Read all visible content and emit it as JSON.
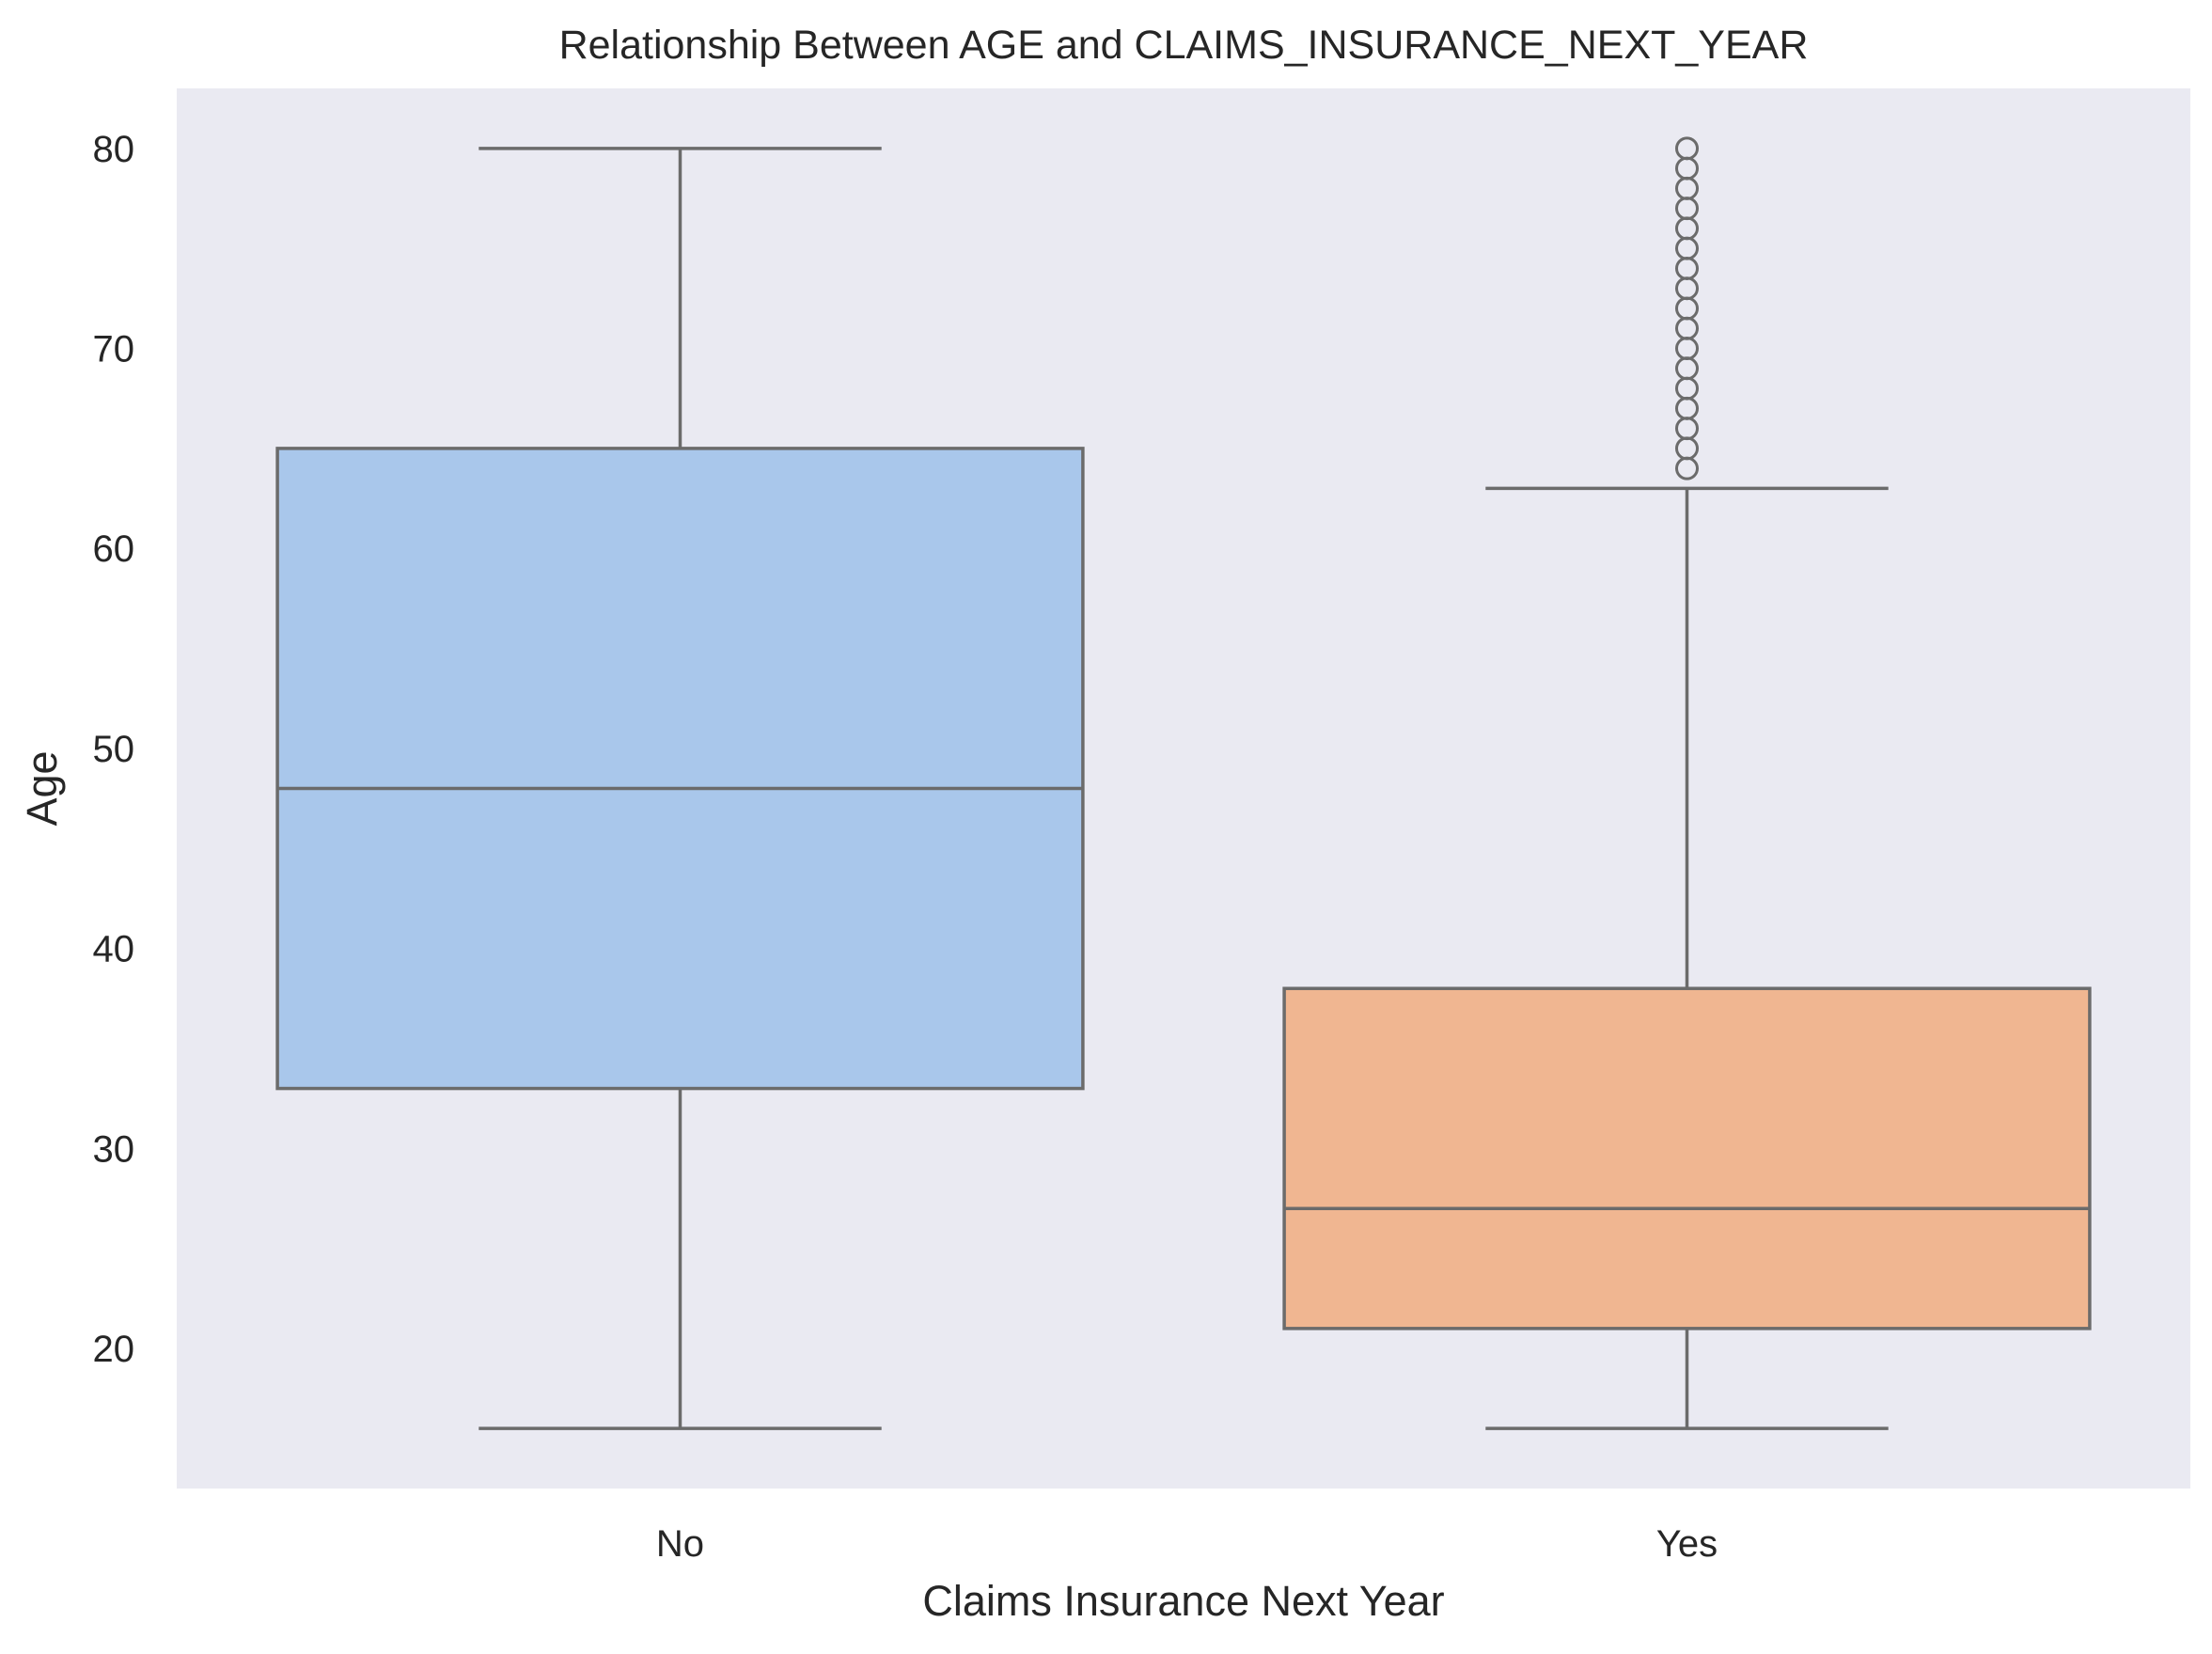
{
  "chart_data": {
    "type": "box",
    "title": "Relationship Between AGE and CLAIMS_INSURANCE_NEXT_YEAR",
    "xlabel": "Claims Insurance Next Year",
    "ylabel": "Age",
    "categories": [
      "No",
      "Yes"
    ],
    "ylim": [
      13,
      83
    ],
    "yticks": [
      20,
      30,
      40,
      50,
      60,
      70,
      80
    ],
    "grid": false,
    "boxes": [
      {
        "category": "No",
        "whisker_low": 16,
        "q1": 33,
        "median": 48,
        "q3": 65,
        "whisker_high": 80,
        "outliers": []
      },
      {
        "category": "Yes",
        "whisker_low": 16,
        "q1": 21,
        "median": 27,
        "q3": 38,
        "whisker_high": 63,
        "outliers": [
          64,
          65,
          66,
          67,
          68,
          69,
          70,
          71,
          72,
          73,
          74,
          75,
          76,
          77,
          78,
          79,
          80
        ]
      }
    ],
    "colors": {
      "background": "#eaeaf2",
      "box_fills": [
        "#a9c7eb",
        "#f0b691"
      ],
      "stroke": "#6b6b6b",
      "text": "#262626"
    }
  }
}
